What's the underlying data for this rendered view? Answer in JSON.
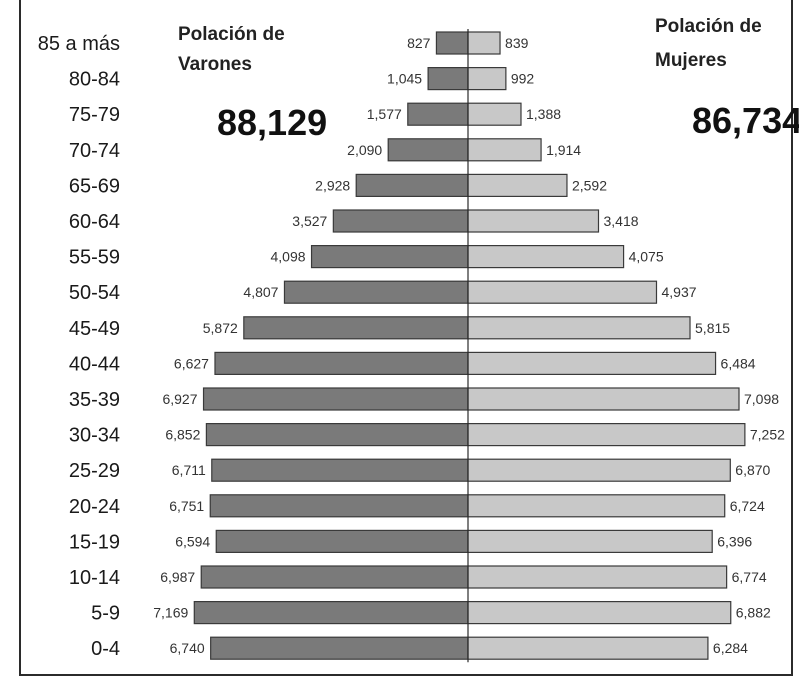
{
  "chart_data": {
    "type": "bar",
    "orientation": "horizontal-butterfly",
    "categories": [
      "85 a más",
      "80-84",
      "75-79",
      "70-74",
      "65-69",
      "60-64",
      "55-59",
      "50-54",
      "45-49",
      "40-44",
      "35-39",
      "30-34",
      "25-29",
      "20-24",
      "15-19",
      "10-14",
      "5-9",
      "0-4"
    ],
    "series": [
      {
        "name": "Polación de Varones",
        "side": "left",
        "color": "#7a7a7a",
        "values": [
          827,
          1045,
          1577,
          2090,
          2928,
          3527,
          4098,
          4807,
          5872,
          6627,
          6927,
          6852,
          6711,
          6751,
          6594,
          6987,
          7169,
          6740
        ],
        "labels": [
          "827",
          "1,045",
          "1,577",
          "2,090",
          "2,928",
          "3,527",
          "4,098",
          "4,807",
          "5,872",
          "6,627",
          "6,927",
          "6,852",
          "6,711",
          "6,751",
          "6,594",
          "6,987",
          "7,169",
          "6,740"
        ]
      },
      {
        "name": "Polación de Mujeres",
        "side": "right",
        "color": "#c8c8c8",
        "values": [
          839,
          992,
          1388,
          1914,
          2592,
          3418,
          4075,
          4937,
          5815,
          6484,
          7098,
          7252,
          6870,
          6724,
          6396,
          6774,
          6882,
          6284
        ],
        "labels": [
          "839",
          "992",
          "1,388",
          "1,914",
          "2,592",
          "3,418",
          "4,075",
          "4,937",
          "5,815",
          "6,484",
          "7,098",
          "7,252",
          "6,870",
          "6,724",
          "6,396",
          "6,774",
          "6,882",
          "6,284"
        ]
      }
    ],
    "totals": {
      "left": "88,129",
      "right": "86,734"
    },
    "headers": {
      "left": "Polación de Varones",
      "right_line1": "Polación de",
      "right_line2": "Mujeres"
    }
  }
}
